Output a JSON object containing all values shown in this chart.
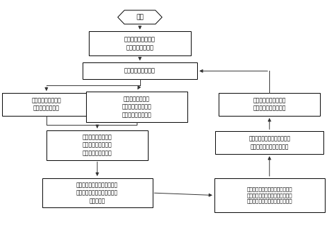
{
  "background_color": "#ffffff",
  "start_text": "开始",
  "node_texts": {
    "init": "整车控制器状态自检\n及相关参数初始化",
    "main_loop": "进入整车控制主循环",
    "collect_driver": "整车控制器采集司机\n踏板、档位等信息",
    "collect_motor": "整车控制采集电机\n控制器、电池管理、\n辅助系统等相关信息",
    "output_mode": "整车控制器输出电机目\n标转矩及目标工作模式",
    "judge_mode": "整车控制器根据采集\n的相关信息，判断当\n前车辆所处工作模式",
    "fault_limit": "整车控制器根据当前的故障等\n级对电机目标转矩进行限制",
    "judge_fault": "整车控制器根据各部件的状态\n判断系统是否存在故障、并确\n定故障等级",
    "init_torque": "整车控制器根据电机的相关特性、\n电池相关特性及踏板状态等，初步\n给定电机目标转矩、目标工作模式"
  },
  "edge_color": "#333333",
  "box_color": "#000000",
  "lw": 0.7,
  "fontsize": 6.0
}
